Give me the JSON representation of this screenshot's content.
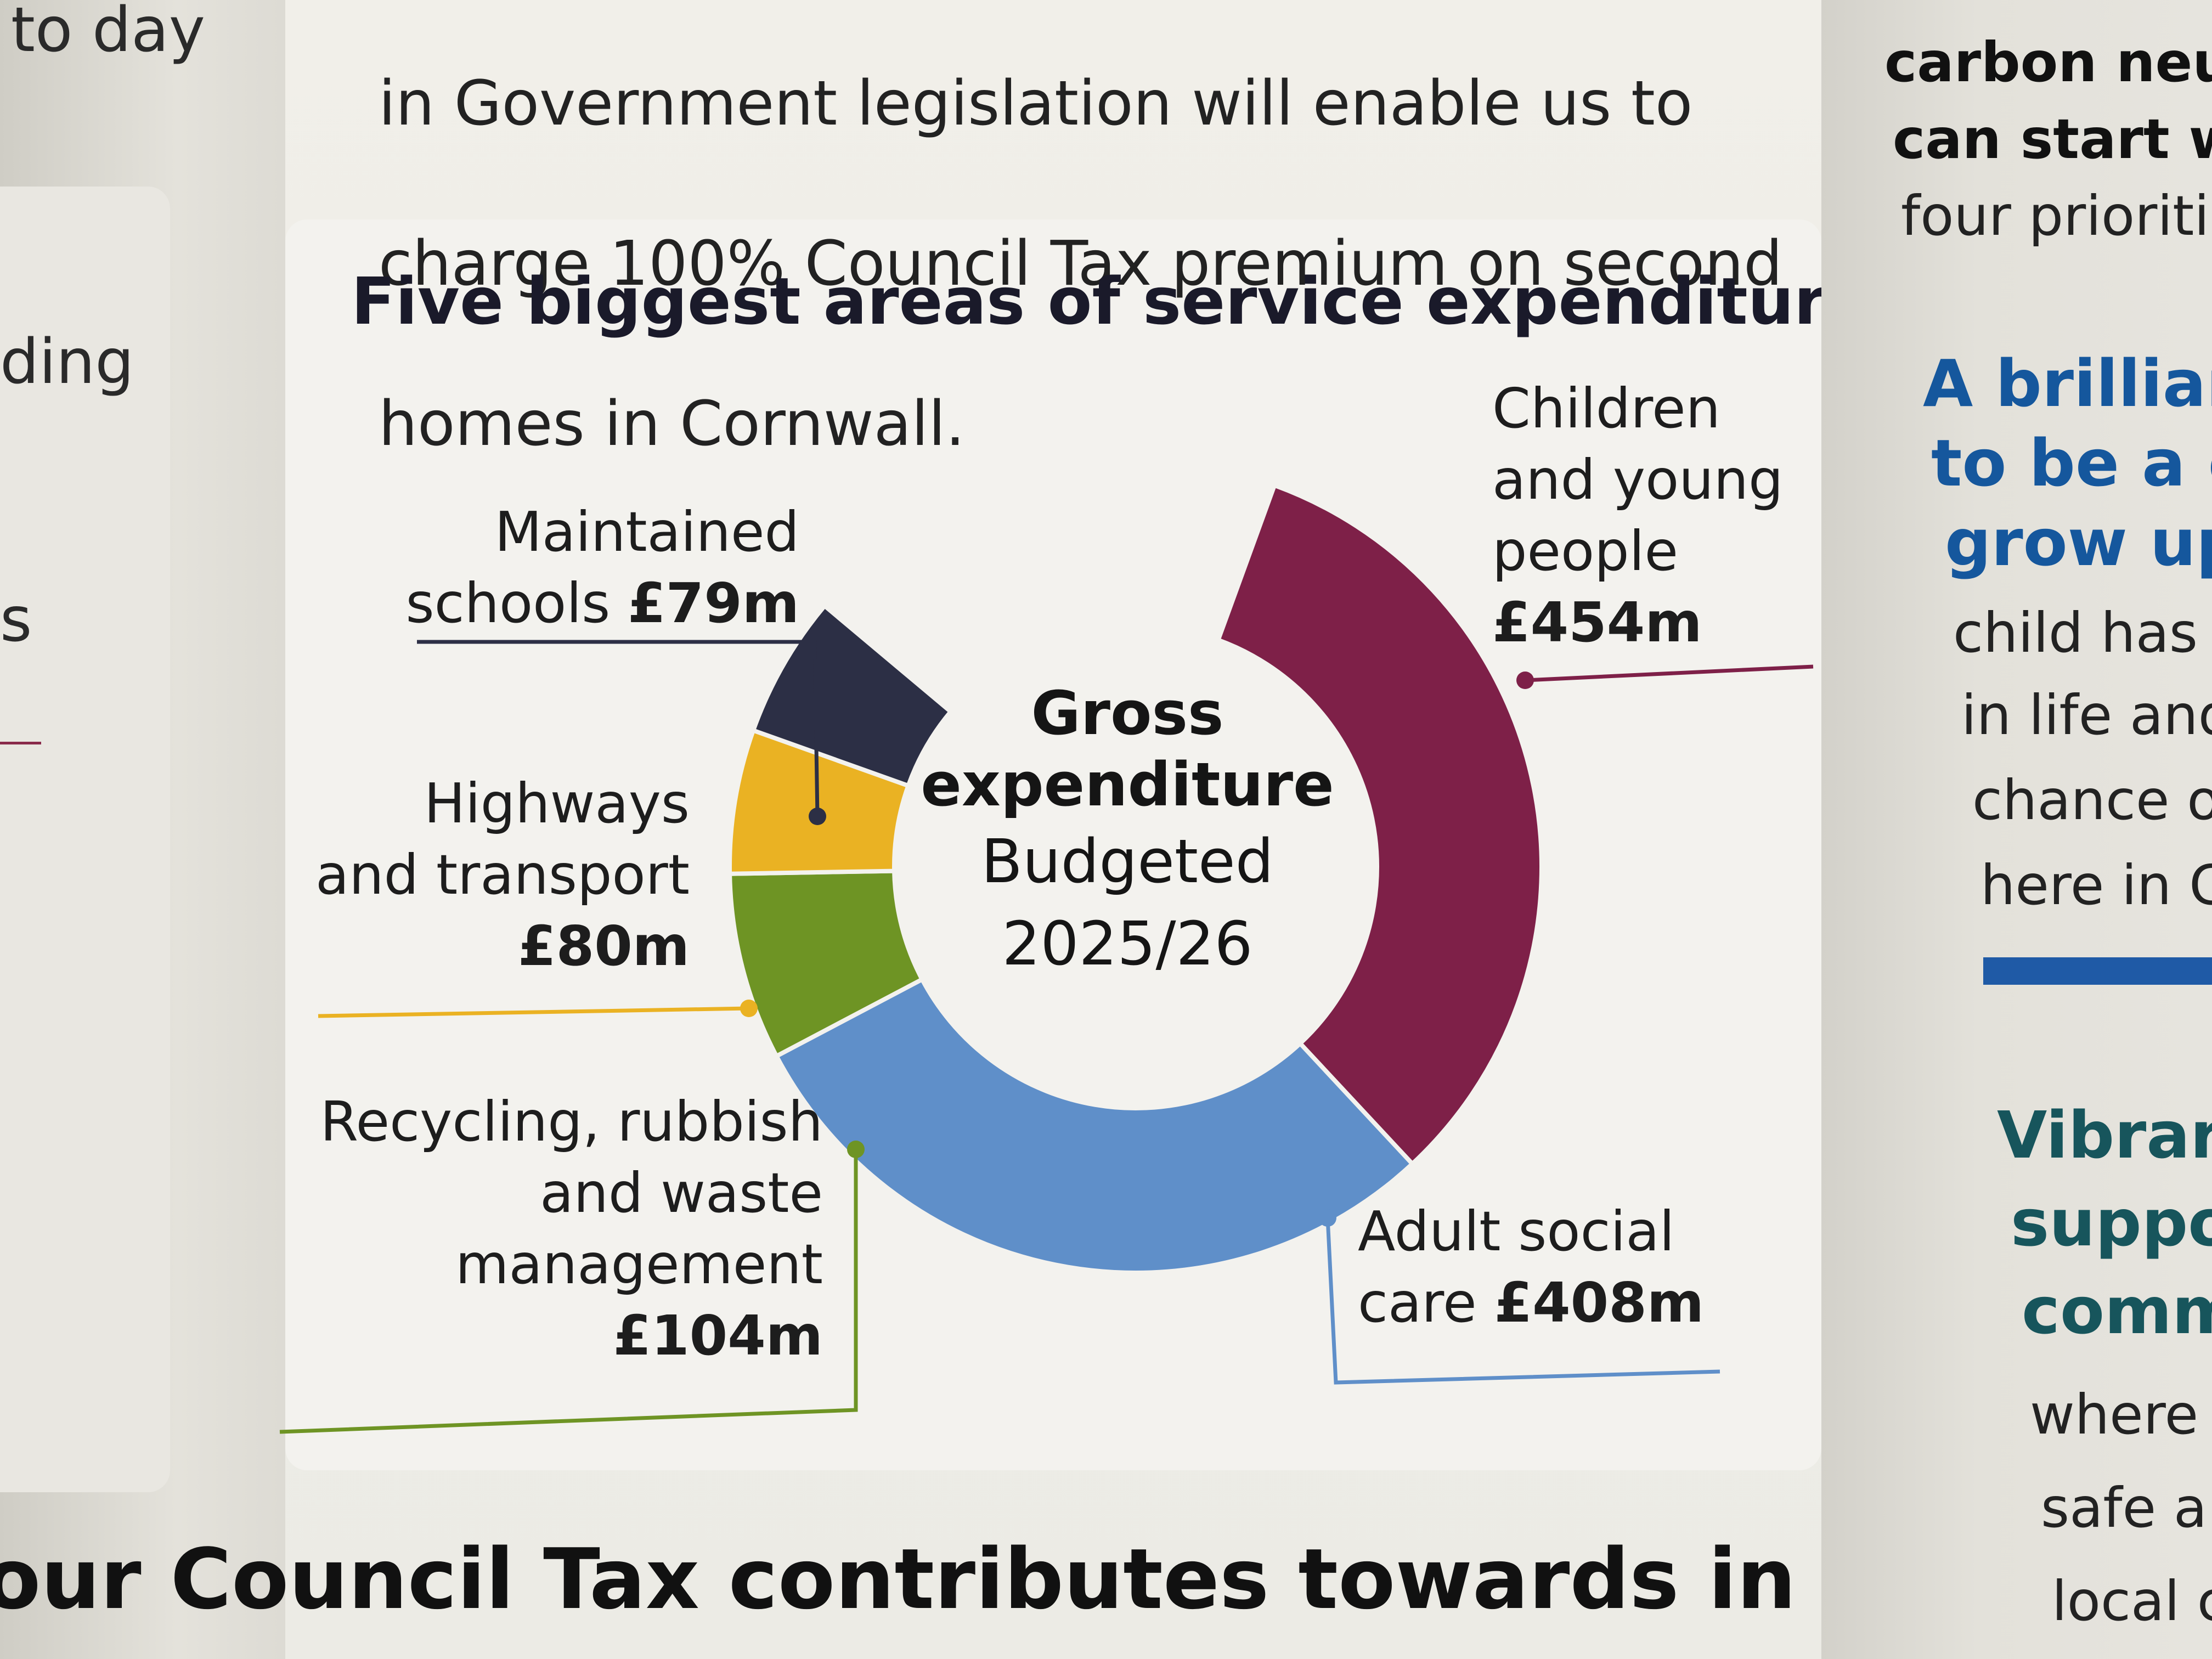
{
  "left_column": {
    "fragments": [
      "to day",
      "ding",
      "s"
    ]
  },
  "top_paragraph": {
    "lines": [
      "in Government legislation will enable us to",
      "charge 100% Council Tax premium on second",
      "homes in Cornwall."
    ]
  },
  "chart_data": {
    "type": "pie",
    "title": "Five biggest areas of service expenditure",
    "center_label": {
      "line1": "Gross",
      "line2": "expenditure",
      "line3": "Budgeted",
      "line4": "2025/26"
    },
    "unit": "£m",
    "slices": [
      {
        "label_lines": [
          "Children",
          "and young",
          "people"
        ],
        "amount": "£454m",
        "value": 454,
        "color": "#7e2048"
      },
      {
        "label_lines": [
          "Adult social",
          "care"
        ],
        "amount": "£408m",
        "value": 408,
        "color": "#5f8fc9"
      },
      {
        "label_lines": [
          "Recycling, rubbish",
          "and waste",
          "management"
        ],
        "amount": "£104m",
        "value": 104,
        "color": "#6e9424"
      },
      {
        "label_lines": [
          "Highways",
          "and transport"
        ],
        "amount": "£80m",
        "value": 80,
        "color": "#eab223"
      },
      {
        "label_lines": [
          "Maintained",
          "schools"
        ],
        "amount": "£79m",
        "value": 79,
        "color": "#2c2f45"
      }
    ]
  },
  "footer": {
    "title": "our Council Tax contributes towards in one year"
  },
  "right_column": {
    "bold_lines": [
      "carbon neu",
      "can start w"
    ],
    "line_after_bold": "four prioriti",
    "blue_heading": [
      "A brillian",
      "to be a c",
      "grow up"
    ],
    "blue_body": [
      "child has th",
      "in life and a",
      "chance of",
      "here in Co"
    ],
    "teal_heading": [
      "Vibrar",
      "suppo",
      "comm"
    ],
    "teal_body": [
      "where e",
      "safe an",
      "local c"
    ]
  }
}
